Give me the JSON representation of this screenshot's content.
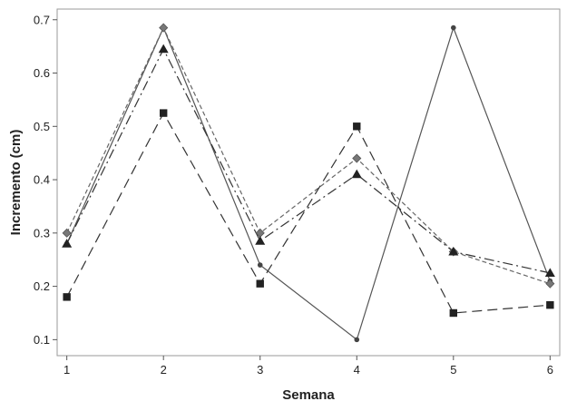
{
  "chart_data": {
    "type": "line",
    "xlabel": "Semana",
    "ylabel": "Incremento (cm)",
    "x": [
      1,
      2,
      3,
      4,
      5,
      6
    ],
    "xlim": [
      0.9,
      6.1
    ],
    "ylim": [
      0.07,
      0.72
    ],
    "xticks": [
      "1",
      "2",
      "3",
      "4",
      "5",
      "6"
    ],
    "yticks": [
      0.1,
      0.2,
      0.3,
      0.4,
      0.5,
      0.6,
      0.7
    ],
    "ytick_labels": [
      "0.1",
      "0.2",
      "0.3",
      "0.4",
      "0.5",
      "0.6",
      "0.7"
    ],
    "grid": false,
    "legend": "none",
    "series": [
      {
        "marker": "circle",
        "line_style": "solid",
        "color": "#555555",
        "values": [
          0.28,
          0.685,
          0.24,
          0.1,
          0.685,
          0.21
        ]
      },
      {
        "marker": "diamond",
        "line_style": "short-dash",
        "color": "#666666",
        "values": [
          0.3,
          0.685,
          0.3,
          0.44,
          0.265,
          0.205
        ]
      },
      {
        "marker": "triangle",
        "line_style": "dash-dot",
        "color": "#333333",
        "values": [
          0.28,
          0.645,
          0.285,
          0.41,
          0.265,
          0.225
        ]
      },
      {
        "marker": "square",
        "line_style": "long-dash",
        "color": "#333333",
        "values": [
          0.18,
          0.525,
          0.205,
          0.5,
          0.15,
          0.165
        ]
      }
    ]
  }
}
